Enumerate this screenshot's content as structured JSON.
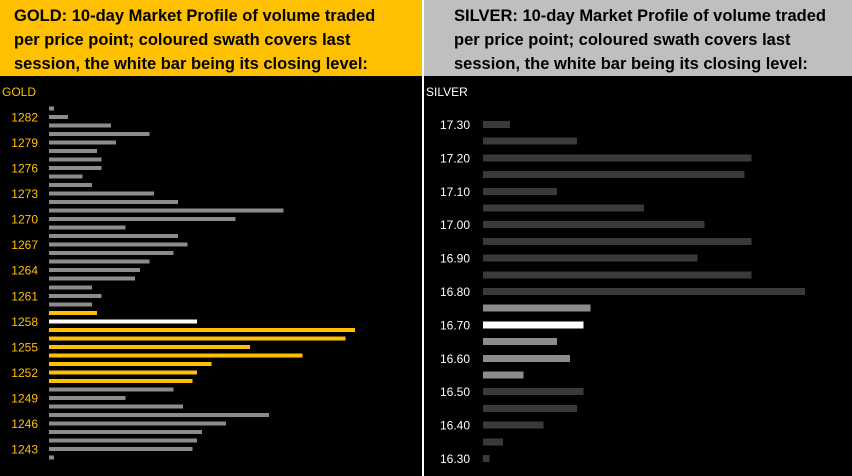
{
  "gold": {
    "header_lines": [
      "GOLD:  10-day Market Profile of volume traded",
      "per price point; coloured swath covers last",
      "session, the white bar being its closing level:"
    ]
  },
  "silver": {
    "header_lines": [
      "SILVER:  10-day Market Profile of volume traded",
      "per price point; coloured swath covers last",
      "session, the white bar being its closing level:"
    ]
  },
  "colors": {
    "background": "#000000",
    "gold_header": "#ffc000",
    "silver_header": "#bfbfbf",
    "gold_tick_text": "#ffc000",
    "silver_tick_text": "#ffffff",
    "gold_bar": "#8c8c8c",
    "gold_swath": "#ffc000",
    "silver_bar": "#3a3a3a",
    "silver_swath": "#8c8c8c",
    "close_bar": "#ffffff"
  },
  "chart_data": [
    {
      "type": "bar",
      "orientation": "horizontal",
      "title": "GOLD",
      "xlabel": "",
      "ylabel": "",
      "tick_labels": [
        "1282",
        "1279",
        "1276",
        "1273",
        "1270",
        "1267",
        "1264",
        "1261",
        "1258",
        "1255",
        "1252",
        "1249",
        "1246",
        "1243"
      ],
      "price_levels": [
        1283,
        1282,
        1281,
        1280,
        1279,
        1278,
        1277,
        1276,
        1275,
        1274,
        1273,
        1272,
        1271,
        1270,
        1269,
        1268,
        1267,
        1266,
        1265,
        1264,
        1263,
        1262,
        1261,
        1260,
        1259,
        1258,
        1257,
        1256,
        1255,
        1254,
        1253,
        1252,
        1251,
        1250,
        1249,
        1248,
        1247,
        1246,
        1245,
        1244,
        1243,
        1242
      ],
      "values": [
        1,
        4,
        13,
        21,
        14,
        10,
        11,
        11,
        7,
        9,
        22,
        27,
        49,
        39,
        16,
        27,
        29,
        26,
        21,
        19,
        18,
        9,
        11,
        9,
        10,
        31,
        64,
        62,
        42,
        53,
        34,
        31,
        30,
        26,
        16,
        28,
        46,
        37,
        32,
        31,
        30,
        1
      ],
      "session": [
        false,
        false,
        false,
        false,
        false,
        false,
        false,
        false,
        false,
        false,
        false,
        false,
        false,
        false,
        false,
        false,
        false,
        false,
        false,
        false,
        false,
        false,
        false,
        false,
        true,
        true,
        true,
        true,
        true,
        true,
        true,
        true,
        true,
        false,
        false,
        false,
        false,
        false,
        false,
        false,
        false,
        false
      ],
      "close_level": 1258,
      "xlim": [
        0,
        64
      ]
    },
    {
      "type": "bar",
      "orientation": "horizontal",
      "title": "SILVER",
      "xlabel": "",
      "ylabel": "",
      "tick_labels": [
        "17.30",
        "17.20",
        "17.10",
        "17.00",
        "16.90",
        "16.80",
        "16.70",
        "16.60",
        "16.50",
        "16.40",
        "16.30"
      ],
      "price_levels": [
        17.3,
        17.25,
        17.2,
        17.15,
        17.1,
        17.05,
        17.0,
        16.95,
        16.9,
        16.85,
        16.8,
        16.75,
        16.7,
        16.65,
        16.6,
        16.55,
        16.5,
        16.45,
        16.4,
        16.35,
        16.3
      ],
      "values": [
        4,
        14,
        40,
        39,
        11,
        24,
        33,
        40,
        32,
        40,
        48,
        16,
        15,
        11,
        13,
        6,
        15,
        14,
        9,
        3,
        1
      ],
      "session": [
        false,
        false,
        false,
        false,
        false,
        false,
        false,
        false,
        false,
        false,
        false,
        true,
        true,
        true,
        true,
        true,
        false,
        false,
        false,
        false,
        false
      ],
      "close_level": 16.7,
      "xlim": [
        0,
        48
      ]
    }
  ]
}
